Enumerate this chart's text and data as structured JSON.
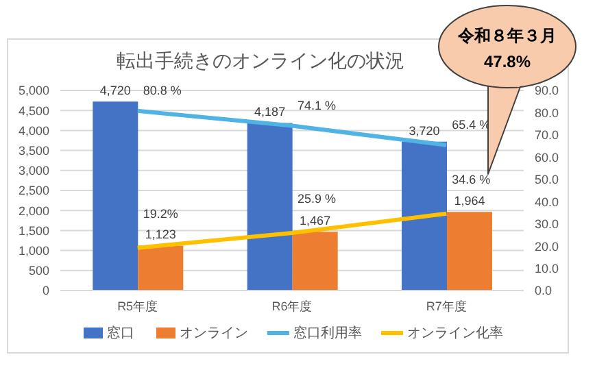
{
  "chart_data": {
    "type": "bar",
    "title": "転出手続きのオンライン化の状況",
    "categories": [
      "R5年度",
      "R6年度",
      "R7年度"
    ],
    "series": [
      {
        "name": "窓口",
        "color": "#4472c4",
        "values": [
          4720,
          4187,
          3720
        ],
        "value_labels": [
          "4,720",
          "4,187",
          "3,720"
        ]
      },
      {
        "name": "オンライン",
        "color": "#ed7d31",
        "values": [
          1123,
          1467,
          1964
        ],
        "value_labels": [
          "1,123",
          "1,467",
          "1,964"
        ]
      },
      {
        "name": "窓口利用率",
        "type": "line",
        "axis": "y2",
        "color": "#4fb3e3",
        "values": [
          80.8,
          74.1,
          65.4
        ],
        "value_labels": [
          "80.8 %",
          "74.1 %",
          "65.4 %"
        ]
      },
      {
        "name": "オンライン化率",
        "type": "line",
        "axis": "y2",
        "color": "#ffc000",
        "values": [
          19.2,
          25.9,
          34.6
        ],
        "value_labels": [
          "19.2%",
          "25.9 %",
          "34.6 %"
        ]
      }
    ],
    "ylim": [
      0,
      5000
    ],
    "yticks": [
      0,
      500,
      {
        "value": 1000,
        "label": "1,000"
      },
      {
        "value": 1500,
        "label": "1,500"
      },
      {
        "value": 2000,
        "label": "2,000"
      },
      {
        "value": 2500,
        "label": "2,500"
      },
      {
        "value": 3000,
        "label": "3,000"
      },
      {
        "value": 3500,
        "label": "3,500"
      },
      {
        "value": 4000,
        "label": "4,000"
      },
      {
        "value": 4500,
        "label": "4,500"
      },
      {
        "value": 5000,
        "label": "5,000"
      }
    ],
    "y2lim": [
      0,
      90
    ],
    "y2ticks": [
      {
        "value": 0,
        "label": "0.0"
      },
      {
        "value": 10,
        "label": "10.0"
      },
      {
        "value": 20,
        "label": "20.0"
      },
      {
        "value": 30,
        "label": "30.0"
      },
      {
        "value": 40,
        "label": "40.0"
      },
      {
        "value": 50,
        "label": "50.0"
      },
      {
        "value": 60,
        "label": "60.0"
      },
      {
        "value": 70,
        "label": "70.0"
      },
      {
        "value": 80,
        "label": "80.0"
      },
      {
        "value": 90,
        "label": "90.0"
      }
    ],
    "grid": "y",
    "legend": "bottom",
    "marker": "none",
    "annotations": [
      "令和８年３月",
      "47.8%"
    ]
  }
}
